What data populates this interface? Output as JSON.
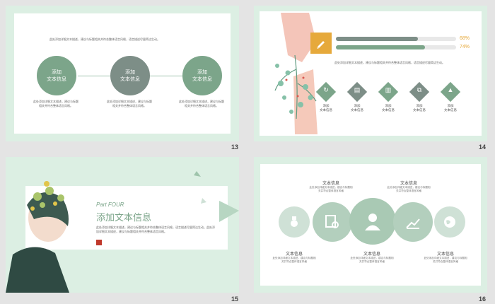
{
  "colors": {
    "background": "#e4e4e4",
    "frame": "#dcefe3",
    "green": "#7ca58a",
    "gray_green": "#7d8e87",
    "orange": "#e6a93b",
    "light_circle": "#cfe1d6"
  },
  "slides": [
    {
      "number": "13",
      "intro_text": "此处添加详细文本描述，建议与标题相关并符合整体语言风格，语言描述尽量简洁生动。",
      "circles": [
        {
          "label": "添加\n文本信息",
          "color": "#7ca58a"
        },
        {
          "label": "添加\n文本信息",
          "color": "#7d8e87"
        },
        {
          "label": "添加\n文本信息",
          "color": "#7ca58a"
        }
      ],
      "descriptions": [
        "此处添加详细文本描述，建议与标题相关并符合整体语言风格。",
        "此处添加详细文本描述，建议与标题相关并符合整体语言风格。",
        "此处添加详细文本描述，建议与标题相关并符合整体语言风格。"
      ]
    },
    {
      "number": "14",
      "bars": [
        {
          "percent": "68%",
          "fill": 0.68,
          "color": "#7d8e87"
        },
        {
          "percent": "74%",
          "fill": 0.74,
          "color": "#7ca58a"
        }
      ],
      "body_text": "此处添加详细文本描述，建议与标题相关并符合整体语言风格，语言描述尽量简洁生动。",
      "icons": [
        {
          "icon": "refresh-icon",
          "glyph": "↻",
          "label": "添加\n文本信息",
          "color": "#7ca58a"
        },
        {
          "icon": "document-icon",
          "glyph": "▤",
          "label": "添加\n文本信息",
          "color": "#7d8e87"
        },
        {
          "icon": "chart-icon",
          "glyph": "▥",
          "label": "添加\n文本信息",
          "color": "#7ca58a"
        },
        {
          "icon": "tags-icon",
          "glyph": "⧉",
          "label": "添加\n文本信息",
          "color": "#7d8e87"
        },
        {
          "icon": "growth-icon",
          "glyph": "▲",
          "label": "添加\n文本信息",
          "color": "#7ca58a"
        }
      ]
    },
    {
      "number": "15",
      "part": "Part FOUR",
      "title": "添加文本信息",
      "body_text": "此处添加详细文本描述，建议与标题相关并符合整体语言风格，语言描述尽量简洁生动。此处添加详细文本描述，建议与标题相关并符合整体语言风格。"
    },
    {
      "number": "16",
      "top_items": [
        {
          "title": "文本信息",
          "text": "此处添加详细文本描述，建议与标题相关并符合整体语言风格"
        },
        {
          "title": "文本信息",
          "text": "此处添加详细文本描述，建议与标题相关并符合整体语言风格"
        }
      ],
      "bottom_items": [
        {
          "title": "文本信息",
          "text": "此处添加详细文本描述，建议与标题相关并符合整体语言风格"
        },
        {
          "title": "文本信息",
          "text": "此处添加详细文本描述，建议与标题相关并符合整体语言风格"
        },
        {
          "title": "文本信息",
          "text": "此处添加详细文本描述，建议与标题相关并符合整体语言风格"
        }
      ],
      "icons": [
        "medal-icon",
        "search-document-icon",
        "person-icon",
        "growth-chart-icon",
        "globe-icon"
      ]
    }
  ]
}
